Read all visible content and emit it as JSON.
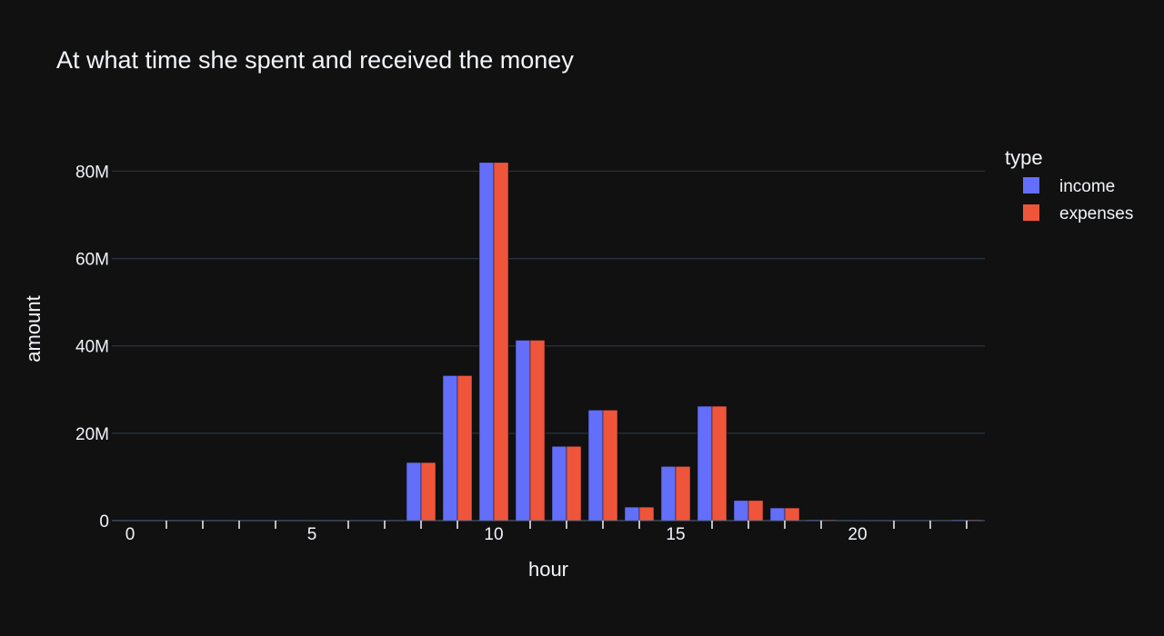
{
  "chart_data": {
    "type": "bar",
    "title": "At what time she spent and received the money",
    "xlabel": "hour",
    "ylabel": "amount",
    "xlim": [
      -0.5,
      23.5
    ],
    "ylim": [
      0,
      88
    ],
    "y_unit_suffix": "M",
    "x_ticks": [
      0,
      5,
      10,
      15,
      20
    ],
    "y_ticks": [
      0,
      20,
      40,
      60,
      80
    ],
    "y_tick_labels": [
      "0",
      "20M",
      "40M",
      "60M",
      "80M"
    ],
    "grid": true,
    "legend": {
      "title": "type",
      "position": "right"
    },
    "x": [
      0,
      1,
      2,
      3,
      4,
      5,
      6,
      7,
      8,
      9,
      10,
      11,
      12,
      13,
      14,
      15,
      16,
      17,
      18,
      19,
      20,
      21,
      22,
      23
    ],
    "series": [
      {
        "name": "income",
        "color": "#636efa",
        "values": [
          0,
          0.1,
          0.1,
          0.1,
          0.1,
          0.1,
          0.1,
          0.1,
          13.3,
          33.2,
          82.0,
          41.3,
          17.0,
          25.3,
          3.1,
          12.4,
          26.2,
          4.6,
          2.9,
          0.2,
          0.1,
          0.1,
          0.1,
          0.2
        ]
      },
      {
        "name": "expenses",
        "color": "#ef553b",
        "values": [
          0,
          0.1,
          0.1,
          0.1,
          0.1,
          0.1,
          0.1,
          0.1,
          13.3,
          33.2,
          82.0,
          41.3,
          17.0,
          25.3,
          3.1,
          12.4,
          26.2,
          4.6,
          2.9,
          0.2,
          0.1,
          0.1,
          0.1,
          0.2
        ]
      }
    ]
  }
}
